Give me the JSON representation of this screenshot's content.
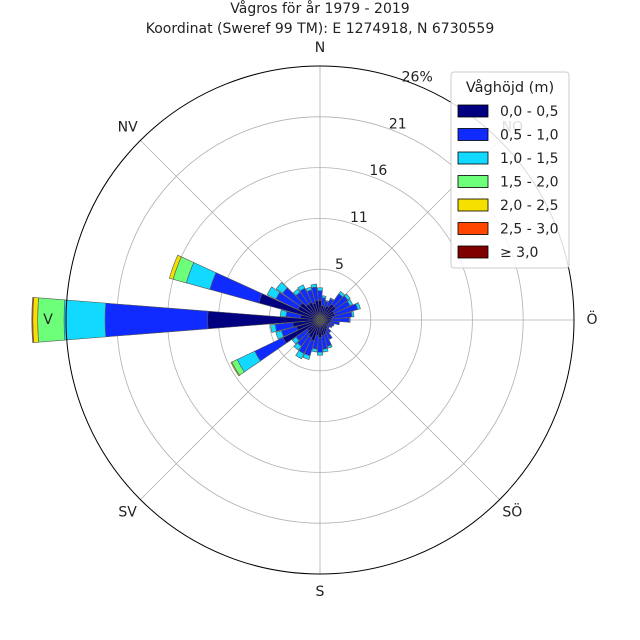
{
  "chart_data": {
    "type": "windrose",
    "title": "Vågros för år 1979 - 2019",
    "subtitle": "Koordinat (Sweref 99 TM): E 1274918, N 6730559",
    "direction_labels": [
      {
        "key": "N",
        "angle": 0,
        "label": "N"
      },
      {
        "key": "NO",
        "angle": 45,
        "label": "NO"
      },
      {
        "key": "O",
        "angle": 90,
        "label": "Ö"
      },
      {
        "key": "SO",
        "angle": 135,
        "label": "SÖ"
      },
      {
        "key": "S",
        "angle": 180,
        "label": "S"
      },
      {
        "key": "SV",
        "angle": 225,
        "label": "SV"
      },
      {
        "key": "V",
        "angle": 270,
        "label": "V"
      },
      {
        "key": "NV",
        "angle": 315,
        "label": "NV"
      }
    ],
    "radial_ticks": [
      "5",
      "11",
      "16",
      "21",
      "26%"
    ],
    "radial_tick_values": [
      5.2,
      10.4,
      15.6,
      20.8,
      26
    ],
    "r_max": 26,
    "legend": {
      "title": "Våghöjd (m)",
      "placement": "top-right",
      "items": [
        {
          "label": "0,0 - 0,5",
          "color": "#000080"
        },
        {
          "label": "0,5 - 1,0",
          "color": "#0f2bff"
        },
        {
          "label": "1,0 - 1,5",
          "color": "#12d9ff"
        },
        {
          "label": "1,5 - 2,0",
          "color": "#6dff7a"
        },
        {
          "label": "2,0 - 2,5",
          "color": "#f5e000"
        },
        {
          "label": "2,5 - 3,0",
          "color": "#ff4500"
        },
        {
          "label": "≥ 3,0",
          "color": "#800000"
        }
      ]
    },
    "sector_width_deg": 10,
    "sectors": [
      {
        "dir": 0,
        "values": [
          2.0,
          1.0,
          0.3
        ]
      },
      {
        "dir": 10,
        "values": [
          1.5,
          0.8,
          0.2
        ]
      },
      {
        "dir": 20,
        "values": [
          1.4,
          0.6,
          0.1
        ]
      },
      {
        "dir": 30,
        "values": [
          1.6,
          0.8,
          0.1
        ]
      },
      {
        "dir": 40,
        "values": [
          2.0,
          1.3,
          0.3
        ]
      },
      {
        "dir": 50,
        "values": [
          2.0,
          1.5,
          0.3
        ]
      },
      {
        "dir": 60,
        "values": [
          1.6,
          1.8,
          0.3
        ]
      },
      {
        "dir": 70,
        "values": [
          1.6,
          2.4,
          0.3
        ]
      },
      {
        "dir": 80,
        "values": [
          1.3,
          2.0,
          0.2
        ]
      },
      {
        "dir": 90,
        "values": [
          1.2,
          1.8,
          0.1
        ]
      },
      {
        "dir": 100,
        "values": [
          1.1,
          0.9
        ]
      },
      {
        "dir": 110,
        "values": [
          1.0,
          0.5
        ]
      },
      {
        "dir": 120,
        "values": [
          1.0,
          0.4
        ]
      },
      {
        "dir": 130,
        "values": [
          0.9,
          0.3
        ]
      },
      {
        "dir": 140,
        "values": [
          1.1,
          0.5
        ]
      },
      {
        "dir": 150,
        "values": [
          1.3,
          0.9
        ]
      },
      {
        "dir": 160,
        "values": [
          1.5,
          1.3,
          0.2
        ]
      },
      {
        "dir": 170,
        "values": [
          1.6,
          1.4,
          0.3
        ]
      },
      {
        "dir": 180,
        "values": [
          1.8,
          1.5,
          0.3
        ]
      },
      {
        "dir": 190,
        "values": [
          1.6,
          1.4,
          0.3
        ]
      },
      {
        "dir": 200,
        "values": [
          2.2,
          1.6,
          0.4
        ]
      },
      {
        "dir": 210,
        "values": [
          2.0,
          1.8,
          0.6
        ]
      },
      {
        "dir": 220,
        "values": [
          1.8,
          1.5,
          0.5
        ]
      },
      {
        "dir": 230,
        "values": [
          1.6,
          1.4,
          0.5
        ]
      },
      {
        "dir": 240,
        "values": [
          4.2,
          3.2,
          2.0,
          0.6,
          0.1
        ]
      },
      {
        "dir": 250,
        "values": [
          2.5,
          1.6,
          0.6
        ]
      },
      {
        "dir": 260,
        "values": [
          2.8,
          1.8,
          0.5
        ]
      },
      {
        "dir": 270,
        "values": [
          11.5,
          10.5,
          4.2,
          2.7,
          0.5,
          0.1
        ]
      },
      {
        "dir": 280,
        "values": [
          2.0,
          1.5,
          0.6
        ]
      },
      {
        "dir": 290,
        "values": [
          6.5,
          5.2,
          2.5,
          1.4,
          0.4
        ]
      },
      {
        "dir": 300,
        "values": [
          2.5,
          2.5,
          1.0
        ]
      },
      {
        "dir": 310,
        "values": [
          2.5,
          2.2,
          0.8
        ]
      },
      {
        "dir": 320,
        "values": [
          2.0,
          1.5,
          0.4
        ]
      },
      {
        "dir": 330,
        "values": [
          2.0,
          1.6,
          0.4
        ]
      },
      {
        "dir": 340,
        "values": [
          1.8,
          1.4,
          0.3
        ]
      },
      {
        "dir": 350,
        "values": [
          2.0,
          1.4,
          0.3
        ]
      }
    ]
  }
}
